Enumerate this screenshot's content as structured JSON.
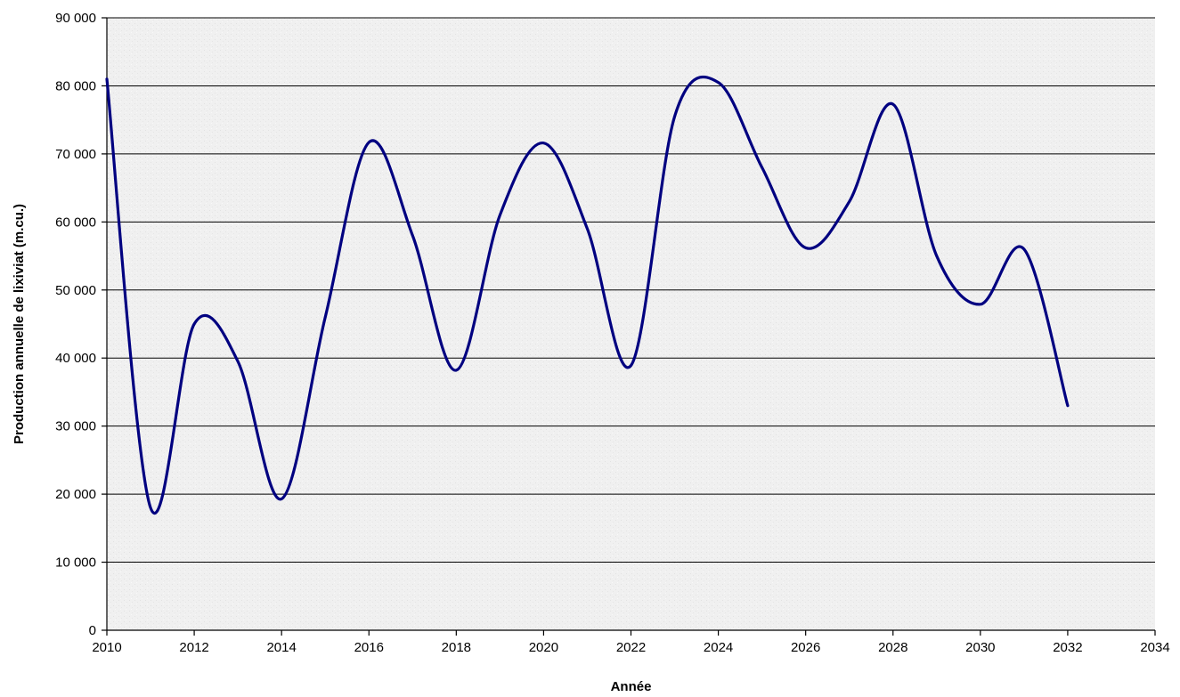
{
  "chart_data": {
    "type": "line",
    "title": "",
    "xlabel": "Année",
    "ylabel": "Production annuelle de lixiviat (m.cu.)",
    "xlim": [
      2010,
      2034
    ],
    "ylim": [
      0,
      90000
    ],
    "x_ticks": [
      2010,
      2012,
      2014,
      2016,
      2018,
      2020,
      2022,
      2024,
      2026,
      2028,
      2030,
      2032,
      2034
    ],
    "x_tick_labels": [
      "2010",
      "2012",
      "2014",
      "2016",
      "2018",
      "2020",
      "2022",
      "2024",
      "2026",
      "2028",
      "2030",
      "2032",
      "2034"
    ],
    "y_ticks": [
      0,
      10000,
      20000,
      30000,
      40000,
      50000,
      60000,
      70000,
      80000,
      90000
    ],
    "y_tick_labels": [
      "0",
      "10 000",
      "20 000",
      "30 000",
      "40 000",
      "50 000",
      "60 000",
      "70 000",
      "80 000",
      "90 000"
    ],
    "grid": "horizontal",
    "smooth": true,
    "legend": "none",
    "series": [
      {
        "color": "#000080",
        "x": [
          2010,
          2011,
          2012,
          2013,
          2014,
          2015,
          2016,
          2017,
          2018,
          2019,
          2020,
          2021,
          2022,
          2023,
          2024,
          2025,
          2026,
          2027,
          2028,
          2029,
          2030,
          2031,
          2032
        ],
        "y": [
          81000,
          18000,
          45000,
          39500,
          19300,
          46000,
          71700,
          58000,
          38200,
          61000,
          71600,
          59000,
          38900,
          75500,
          80500,
          68000,
          56200,
          63000,
          77300,
          55000,
          47900,
          56000,
          33000
        ]
      }
    ]
  },
  "colors": {
    "plot_background": "#f0f0f0",
    "line": "#000080",
    "grid": "#000000"
  }
}
